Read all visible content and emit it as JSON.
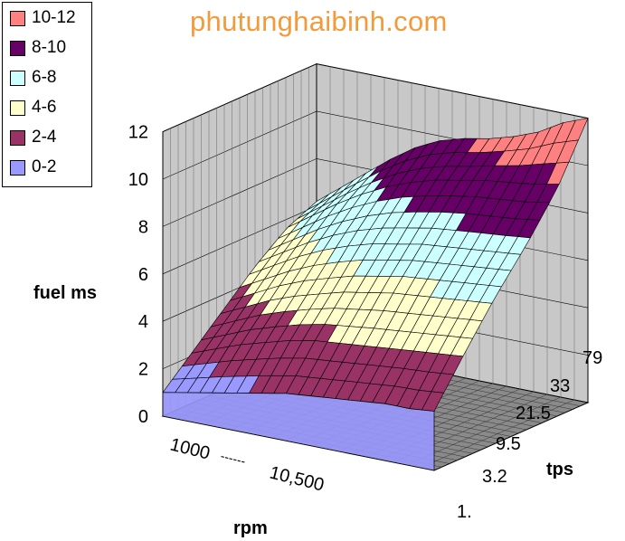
{
  "watermark": "phutunghaibinh.com",
  "chart_data": {
    "type": "surface",
    "zlabel": "fuel ms",
    "xlabel": "rpm",
    "ylabel": "tps",
    "zlim": [
      0,
      12
    ],
    "z_ticks": [
      "0",
      "2",
      "4",
      "6",
      "8",
      "10",
      "12"
    ],
    "x_ticks": [
      "1000",
      "10,500"
    ],
    "x_tick_connector": "------",
    "y_ticks": [
      "1.",
      "3.2",
      "9.5",
      "21.5",
      "33",
      "79"
    ],
    "legend": [
      {
        "label": "10-12",
        "color": "#ff8080"
      },
      {
        "label": "8-10",
        "color": "#660066"
      },
      {
        "label": "6-8",
        "color": "#ccffff"
      },
      {
        "label": "4-6",
        "color": "#ffffcc"
      },
      {
        "label": "2-4",
        "color": "#993366"
      },
      {
        "label": "0-2",
        "color": "#9999ff"
      }
    ],
    "tps_rows": [
      "1.",
      "3.2",
      "9.5",
      "21.5",
      "33",
      "79"
    ],
    "fuel_ms_profile_by_tps": [
      [
        1.0,
        1.2,
        1.4,
        1.6,
        1.8,
        2.0,
        2.1,
        2.2,
        2.3,
        2.4,
        2.4,
        2.5
      ],
      [
        2.2,
        2.6,
        3.0,
        3.3,
        3.6,
        3.8,
        3.9,
        4.0,
        4.1,
        4.2,
        4.3,
        4.4
      ],
      [
        3.4,
        3.9,
        4.4,
        4.8,
        5.1,
        5.4,
        5.6,
        5.8,
        5.9,
        6.0,
        6.1,
        6.2
      ],
      [
        4.6,
        5.2,
        5.8,
        6.3,
        6.7,
        7.0,
        7.2,
        7.4,
        7.5,
        7.6,
        7.7,
        7.8
      ],
      [
        5.6,
        6.3,
        7.0,
        7.6,
        8.1,
        8.5,
        8.8,
        9.0,
        9.2,
        9.3,
        9.4,
        9.6
      ],
      [
        6.2,
        7.0,
        7.8,
        8.6,
        9.3,
        9.8,
        10.1,
        10.3,
        10.6,
        11.0,
        11.6,
        12.0
      ]
    ]
  }
}
